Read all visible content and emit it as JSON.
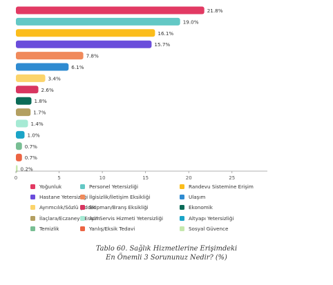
{
  "chart_data": {
    "type": "bar",
    "orientation": "horizontal",
    "categories": [
      "Yoğunluk",
      "Personel Yetersizliği",
      "Randevu Sistemine Erişim",
      "Hastane Yetersizliği",
      "İlgisizlik/İletişim Eksikliği",
      "Ulaşım",
      "Ayrımcılık/Sözlü Şiddet",
      "Ekipman/Branş Eksikliği",
      "Ekonomik",
      "İlaçlara/Eczaneye Erişim",
      "Acil Servis Hizmeti Yetersizliği",
      "Altyapı Yetersizliği",
      "Temizlik",
      "Yanlış/Eksik Tedavi",
      "Sosyal Güvence"
    ],
    "values": [
      21.8,
      19.0,
      16.1,
      15.7,
      7.8,
      6.1,
      3.4,
      2.6,
      1.8,
      1.7,
      1.4,
      1.0,
      0.7,
      0.7,
      0.2
    ],
    "value_labels": [
      "21.8%",
      "19.0%",
      "16.1%",
      "15.7%",
      "7.8%",
      "6.1%",
      "3.4%",
      "2.6%",
      "1.8%",
      "1.7%",
      "1.4%",
      "1.0%",
      "0.7%",
      "0.7%",
      "0.2%"
    ],
    "colors": [
      "#e23a63",
      "#63c8c5",
      "#fbbd1c",
      "#6a4ddb",
      "#f08a5b",
      "#2f8bd1",
      "#fbd46b",
      "#d83560",
      "#0b6b57",
      "#b39f61",
      "#a6ead4",
      "#1aa4c7",
      "#78be93",
      "#ec6443",
      "#c6e8ad"
    ],
    "xlim": [
      0,
      27
    ],
    "xticks": [
      0,
      5,
      10,
      15,
      20,
      25
    ],
    "grid": false,
    "legend_position": "bottom",
    "title": "Tablo 60. Sağlık Hizmetlerine Erişimdeki\nEn Önemli 3 Sorununuz Nedir? (%)"
  },
  "caption": {
    "line1": "Tablo 60. Sağlık Hizmetlerine Erişimdeki",
    "line2": "En Önemli 3 Sorununuz Nedir? (%)"
  }
}
